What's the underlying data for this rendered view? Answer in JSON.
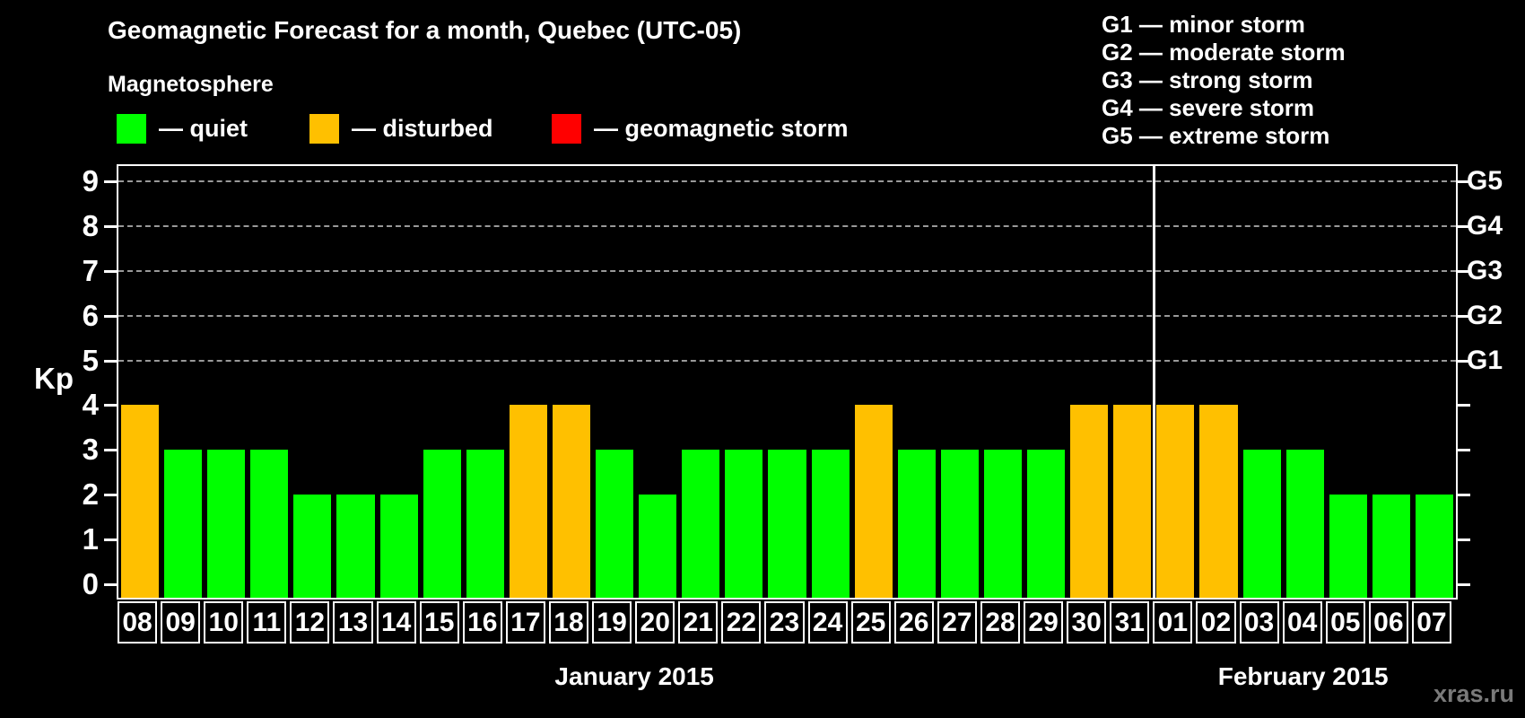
{
  "title": "Geomagnetic Forecast for a month, Quebec (UTC-05)",
  "subtitle": "Magnetosphere",
  "legend": {
    "items": [
      {
        "name": "quiet",
        "label": "— quiet",
        "color": "#00ff00",
        "x": 130
      },
      {
        "name": "disturbed",
        "label": "— disturbed",
        "color": "#ffc000",
        "x": 345
      },
      {
        "name": "geomagnetic-storm",
        "label": "— geomagnetic storm",
        "color": "#ff0000",
        "x": 615
      }
    ]
  },
  "g_legend": [
    "G1 — minor storm",
    "G2 — moderate storm",
    "G3 — strong storm",
    "G4 — severe storm",
    "G5 — extreme storm"
  ],
  "watermark": "xras.ru",
  "chart_data": {
    "type": "bar",
    "title": "Geomagnetic Forecast for a month, Quebec (UTC-05)",
    "xlabel": "",
    "ylabel": "Kp",
    "ylim": [
      -0.3,
      9.4
    ],
    "yticks": [
      0,
      1,
      2,
      3,
      4,
      5,
      6,
      7,
      8,
      9
    ],
    "grid_values": [
      5,
      6,
      7,
      8,
      9
    ],
    "grid_on": true,
    "right_axis_labels": [
      {
        "value": 5,
        "label": "G1"
      },
      {
        "value": 6,
        "label": "G2"
      },
      {
        "value": 7,
        "label": "G3"
      },
      {
        "value": 8,
        "label": "G4"
      },
      {
        "value": 9,
        "label": "G5"
      }
    ],
    "status_colors": {
      "quiet": "#00ff00",
      "disturbed": "#ffc000",
      "storm": "#ff0000"
    },
    "months": [
      {
        "label": "January 2015",
        "days": 24
      },
      {
        "label": "February 2015",
        "days": 7
      }
    ],
    "categories": [
      "08",
      "09",
      "10",
      "11",
      "12",
      "13",
      "14",
      "15",
      "16",
      "17",
      "18",
      "19",
      "20",
      "21",
      "22",
      "23",
      "24",
      "25",
      "26",
      "27",
      "28",
      "29",
      "30",
      "31",
      "01",
      "02",
      "03",
      "04",
      "05",
      "06",
      "07"
    ],
    "values": [
      4,
      3,
      3,
      3,
      2,
      2,
      2,
      3,
      3,
      4,
      4,
      3,
      2,
      3,
      3,
      3,
      3,
      4,
      3,
      3,
      3,
      3,
      4,
      4,
      4,
      4,
      3,
      3,
      2,
      2,
      2
    ],
    "statuses": [
      "disturbed",
      "quiet",
      "quiet",
      "quiet",
      "quiet",
      "quiet",
      "quiet",
      "quiet",
      "quiet",
      "disturbed",
      "disturbed",
      "quiet",
      "quiet",
      "quiet",
      "quiet",
      "quiet",
      "quiet",
      "disturbed",
      "quiet",
      "quiet",
      "quiet",
      "quiet",
      "disturbed",
      "disturbed",
      "disturbed",
      "disturbed",
      "quiet",
      "quiet",
      "quiet",
      "quiet",
      "quiet"
    ]
  }
}
